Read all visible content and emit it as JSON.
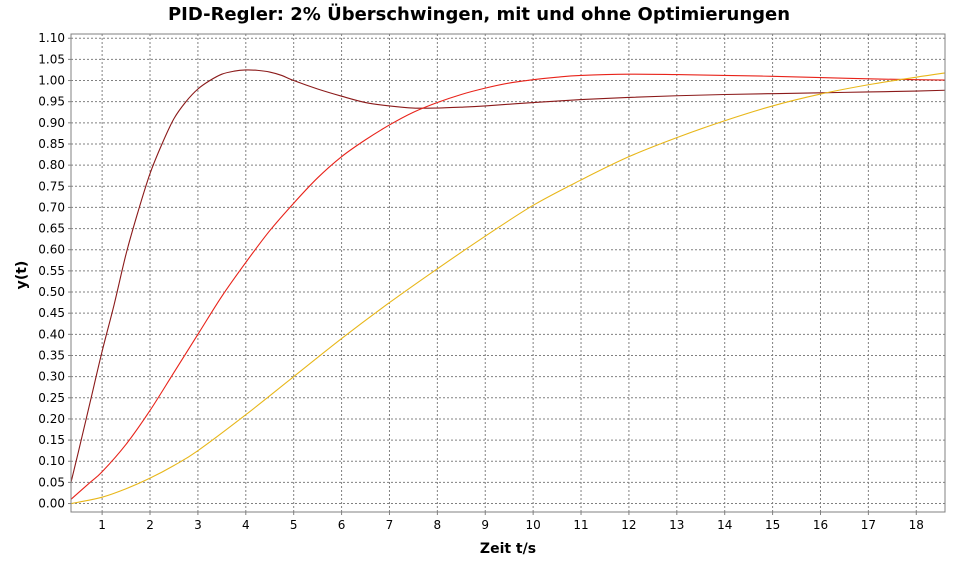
{
  "chart_data": {
    "type": "line",
    "title": "PID-Regler: 2% Überschwingen, mit und ohne Optimierungen",
    "xlabel": "Zeit t/s",
    "ylabel": "y(t)",
    "xlim": [
      0.35,
      18.6
    ],
    "ylim": [
      -0.02,
      1.11
    ],
    "x_ticks": [
      1,
      2,
      3,
      4,
      5,
      6,
      7,
      8,
      9,
      10,
      11,
      12,
      13,
      14,
      15,
      16,
      17,
      18
    ],
    "y_ticks": [
      0.0,
      0.05,
      0.1,
      0.15,
      0.2,
      0.25,
      0.3,
      0.35,
      0.4,
      0.45,
      0.5,
      0.55,
      0.6,
      0.65,
      0.7,
      0.75,
      0.8,
      0.85,
      0.9,
      0.95,
      1.0,
      1.05,
      1.1
    ],
    "grid": true,
    "series": [
      {
        "color": "#8b1a1a",
        "x": [
          0.35,
          0.5,
          0.75,
          1.0,
          1.25,
          1.5,
          1.75,
          2.0,
          2.25,
          2.5,
          2.75,
          3.0,
          3.25,
          3.5,
          3.75,
          4.0,
          4.25,
          4.5,
          4.75,
          5.0,
          5.5,
          6.0,
          6.5,
          7.0,
          7.5,
          8.0,
          8.5,
          9.0,
          10.0,
          11.0,
          12.0,
          13.0,
          14.0,
          15.0,
          16.0,
          17.0,
          18.0,
          18.6
        ],
        "y": [
          0.05,
          0.12,
          0.24,
          0.36,
          0.47,
          0.59,
          0.69,
          0.78,
          0.85,
          0.91,
          0.95,
          0.98,
          1.0,
          1.015,
          1.022,
          1.025,
          1.024,
          1.02,
          1.012,
          1.0,
          0.98,
          0.963,
          0.948,
          0.94,
          0.935,
          0.935,
          0.937,
          0.94,
          0.948,
          0.955,
          0.96,
          0.964,
          0.967,
          0.969,
          0.971,
          0.973,
          0.975,
          0.977
        ]
      },
      {
        "color": "#e8231a",
        "x": [
          0.35,
          0.5,
          0.75,
          1.0,
          1.5,
          2.0,
          2.5,
          3.0,
          3.5,
          4.0,
          4.5,
          5.0,
          5.5,
          6.0,
          6.5,
          7.0,
          7.5,
          8.0,
          8.5,
          9.0,
          9.5,
          10.0,
          10.5,
          11.0,
          12.0,
          13.0,
          14.0,
          15.0,
          16.0,
          17.0,
          18.0,
          18.6
        ],
        "y": [
          0.01,
          0.025,
          0.05,
          0.075,
          0.14,
          0.22,
          0.31,
          0.4,
          0.49,
          0.57,
          0.645,
          0.71,
          0.77,
          0.82,
          0.86,
          0.895,
          0.925,
          0.948,
          0.967,
          0.982,
          0.994,
          1.002,
          1.008,
          1.012,
          1.015,
          1.014,
          1.012,
          1.01,
          1.007,
          1.004,
          1.002,
          1.001
        ]
      },
      {
        "color": "#e8b71a",
        "x": [
          0.35,
          0.5,
          1.0,
          1.5,
          2.0,
          2.5,
          3.0,
          4.0,
          5.0,
          6.0,
          7.0,
          8.0,
          9.0,
          10.0,
          11.0,
          12.0,
          13.0,
          14.0,
          15.0,
          16.0,
          17.0,
          18.0,
          18.6
        ],
        "y": [
          0.0,
          0.003,
          0.015,
          0.035,
          0.06,
          0.09,
          0.125,
          0.21,
          0.3,
          0.39,
          0.475,
          0.555,
          0.632,
          0.705,
          0.765,
          0.82,
          0.865,
          0.905,
          0.94,
          0.968,
          0.99,
          1.008,
          1.018
        ]
      }
    ]
  }
}
